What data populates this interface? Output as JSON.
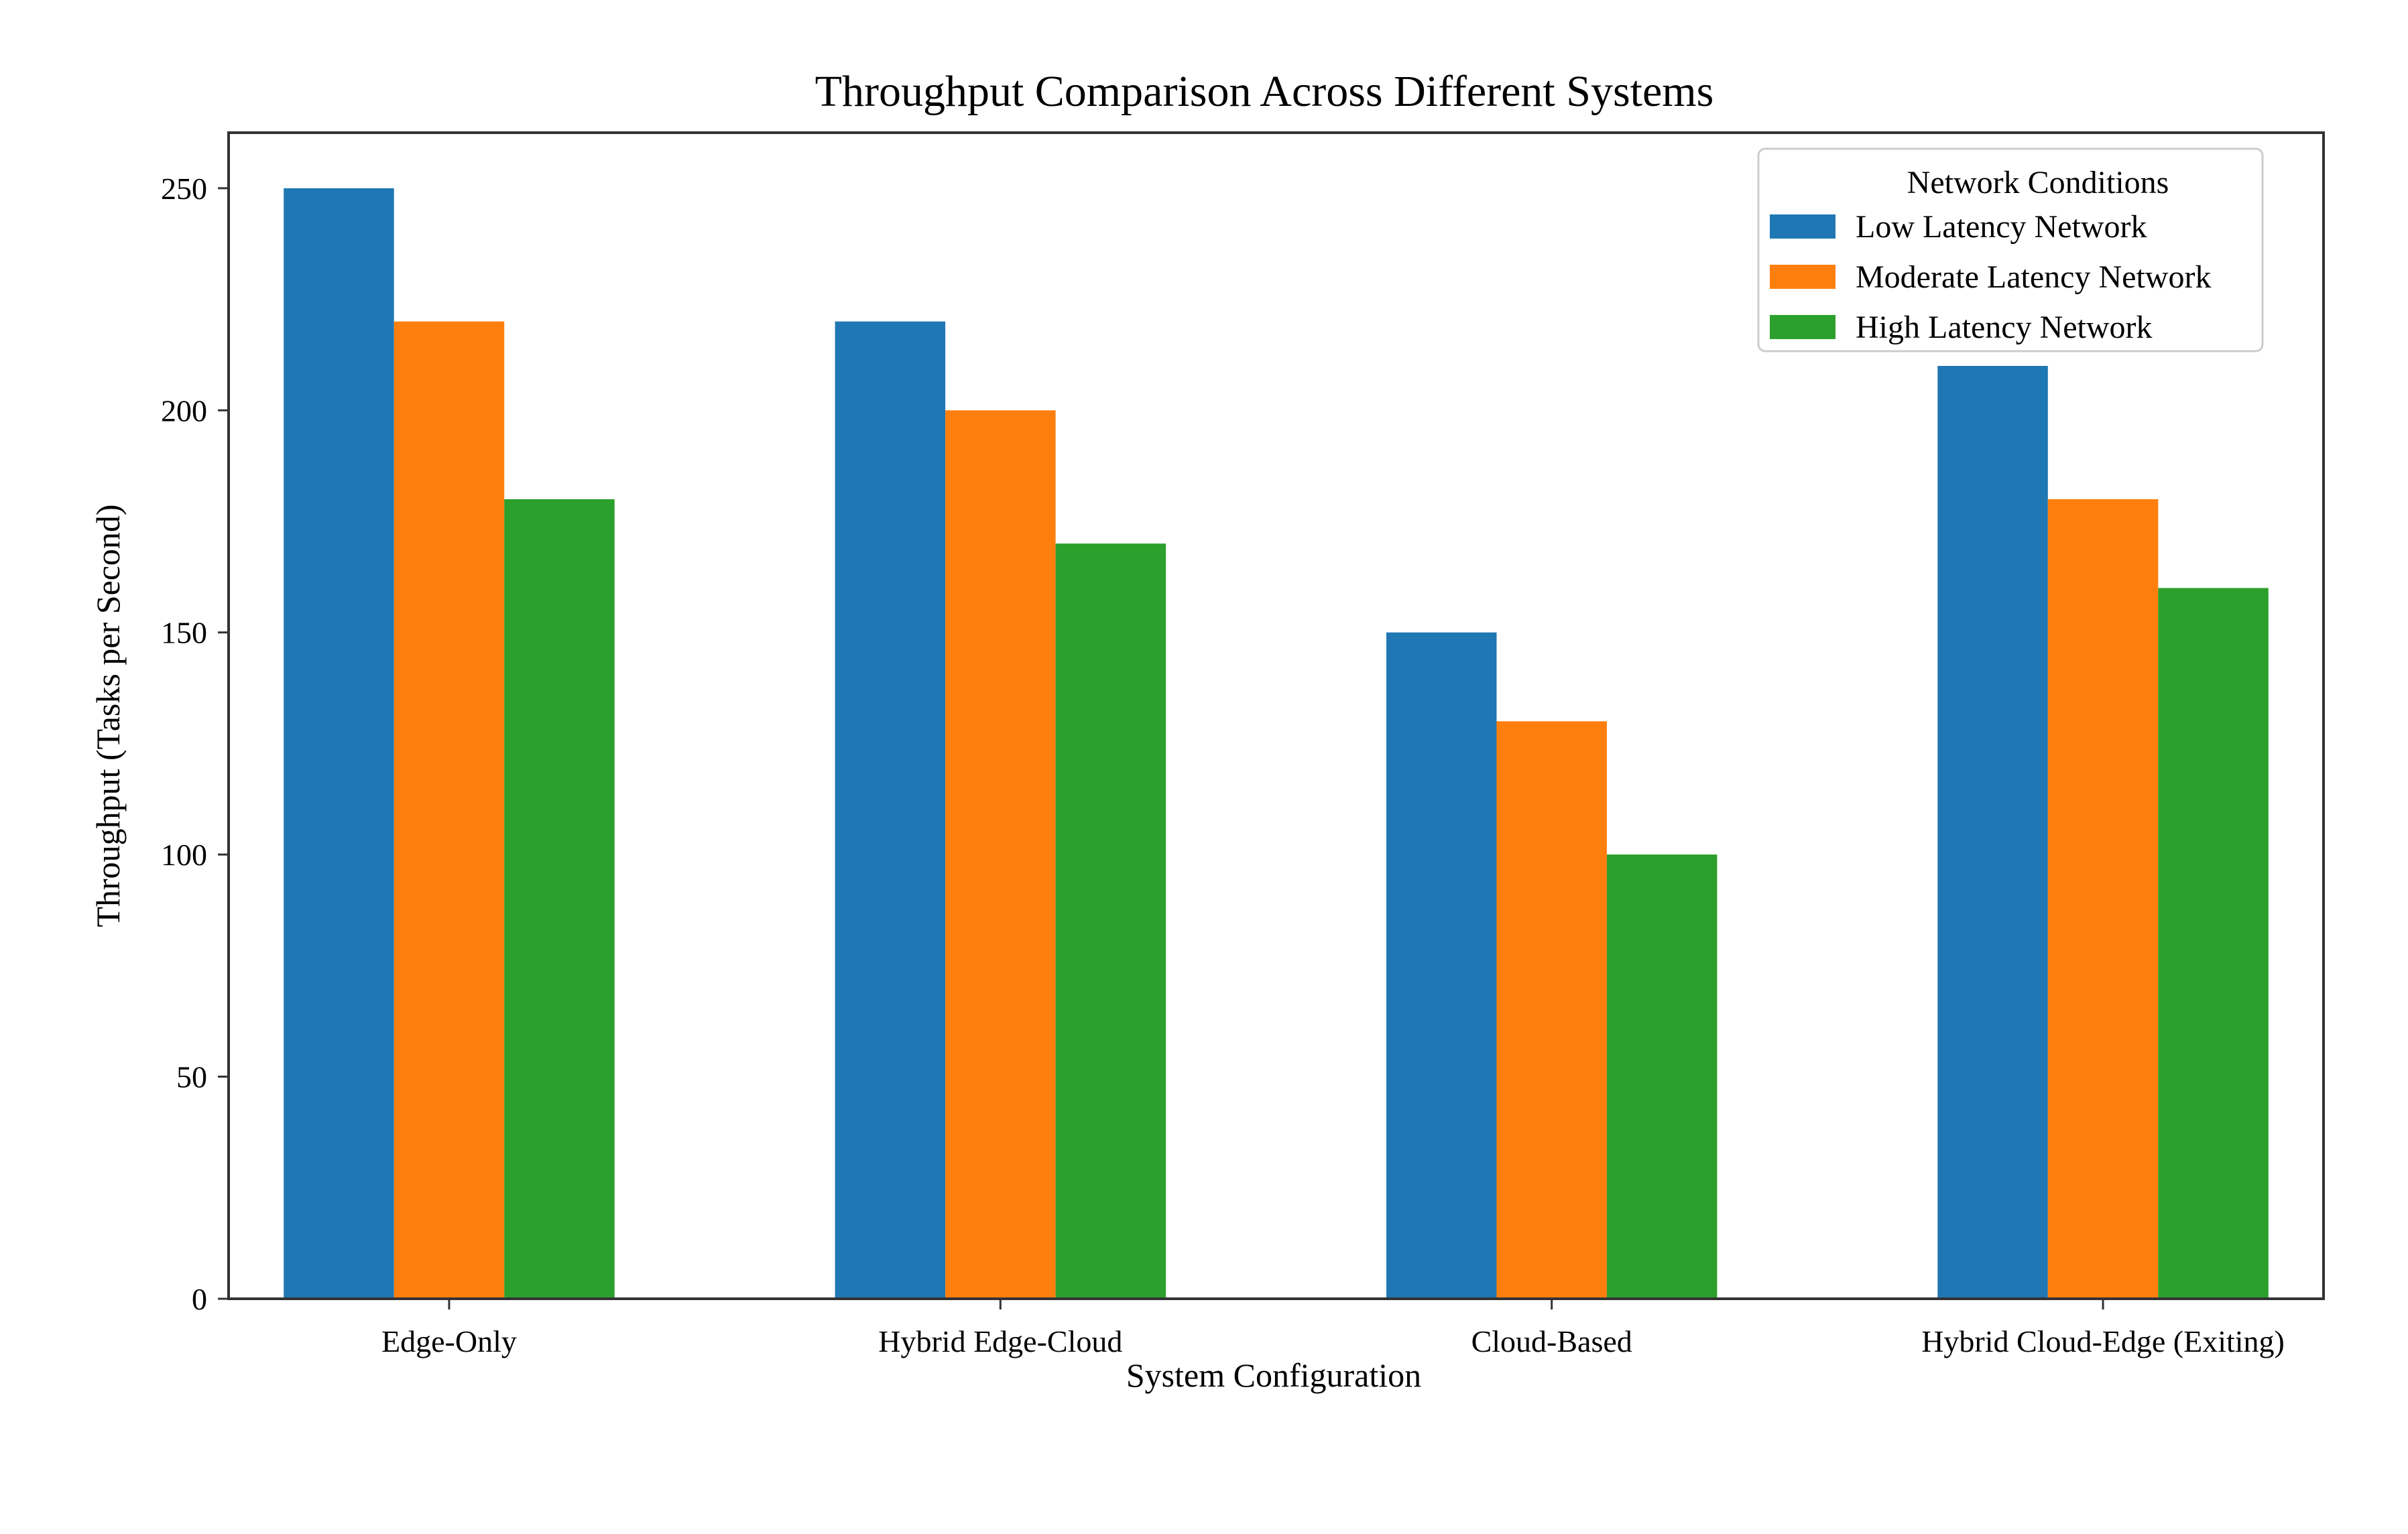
{
  "colors": {
    "low": "#1f77b4",
    "moderate": "#ff7f0e",
    "high": "#2ca02c",
    "axes": "#333333",
    "legend_border": "#cccccc"
  },
  "chart_data": {
    "type": "bar",
    "title": "Throughput Comparison Across Different Systems",
    "xlabel": "System Configuration",
    "ylabel": "Throughput (Tasks per Second)",
    "categories": [
      "Edge-Only",
      "Hybrid Edge-Cloud",
      "Cloud-Based",
      "Hybrid Cloud-Edge (Exiting)"
    ],
    "series": [
      {
        "name": "Low Latency Network",
        "color": "#1f77b4",
        "values": [
          250,
          220,
          150,
          210
        ]
      },
      {
        "name": "Moderate Latency Network",
        "color": "#ff7f0e",
        "values": [
          220,
          200,
          130,
          180
        ]
      },
      {
        "name": "High Latency Network",
        "color": "#2ca02c",
        "values": [
          180,
          170,
          100,
          160
        ]
      }
    ],
    "ylim": [
      0,
      262.5
    ],
    "yticks": [
      0,
      50,
      100,
      150,
      200,
      250
    ],
    "grid": false,
    "legend": {
      "title": "Network Conditions",
      "placement": "upper right"
    }
  }
}
